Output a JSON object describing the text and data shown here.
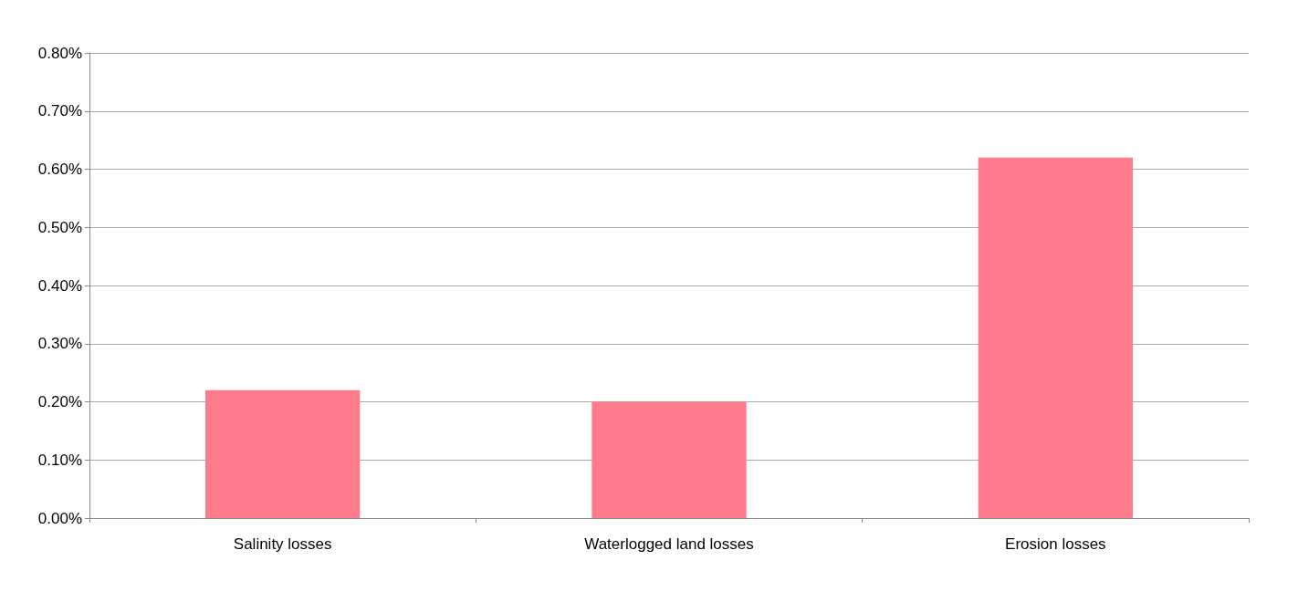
{
  "chart_data": {
    "type": "bar",
    "categories": [
      "Salinity losses",
      "Waterlogged land losses",
      "Erosion losses"
    ],
    "values": [
      0.22,
      0.2,
      0.62
    ],
    "color": "#ff7b8c",
    "ylim": [
      0,
      0.8
    ],
    "yticks": [
      {
        "value": 0,
        "label": "0.00%"
      },
      {
        "value": 0.1,
        "label": "0.10%"
      },
      {
        "value": 0.2,
        "label": "0.20%"
      },
      {
        "value": 0.3,
        "label": "0.30%"
      },
      {
        "value": 0.4,
        "label": "0.40%"
      },
      {
        "value": 0.5,
        "label": "0.50%"
      },
      {
        "value": 0.6,
        "label": "0.60%"
      },
      {
        "value": 0.7,
        "label": "0.70%"
      },
      {
        "value": 0.8,
        "label": "0.80%"
      }
    ],
    "grid": "y"
  }
}
